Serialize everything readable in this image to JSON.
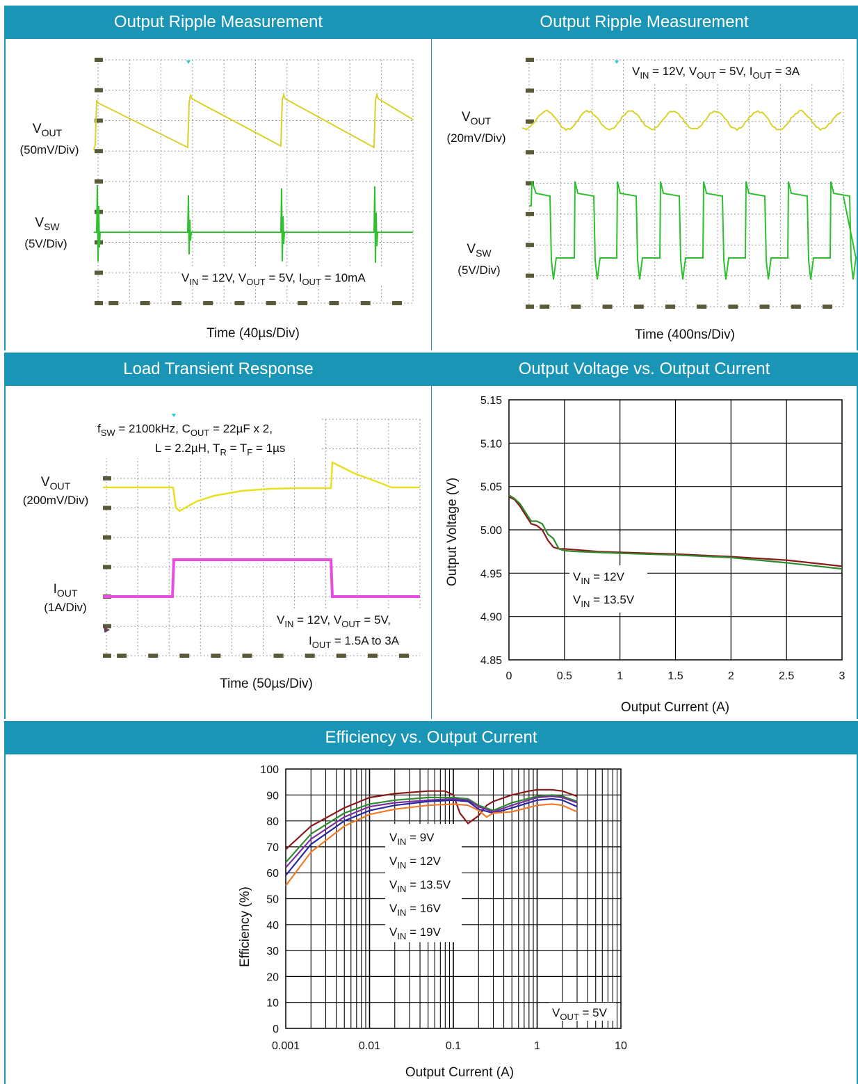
{
  "panels": {
    "p1": {
      "title": "Output Ripple Measurement"
    },
    "p2": {
      "title": "Output Ripple Measurement"
    },
    "p3": {
      "title": "Load Transient Response"
    },
    "p4": {
      "title": "Output Voltage vs. Output Current"
    },
    "p5": {
      "title": "Efficiency vs. Output Current"
    }
  },
  "scope1": {
    "ch1": {
      "label": "V",
      "sub": "OUT",
      "scale": "(50mV/Div)"
    },
    "ch2": {
      "label": "V",
      "sub": "SW",
      "scale": "(5V/Div)"
    },
    "cond": {
      "a": "V",
      "a_sub": "IN",
      "a_val": " = 12V, V",
      "b_sub": "OUT",
      "b_val": " = 5V, I",
      "c_sub": "OUT",
      "c_val": " = 10mA"
    },
    "time": "Time (40µs/Div)"
  },
  "scope2": {
    "ch1": {
      "label": "V",
      "sub": "OUT",
      "scale": "(20mV/Div)"
    },
    "ch2": {
      "label": "V",
      "sub": "SW",
      "scale": "(5V/Div)"
    },
    "cond": {
      "a": "V",
      "a_sub": "IN",
      "a_val": " = 12V, V",
      "b_sub": "OUT",
      "b_val": " = 5V, I",
      "c_sub": "OUT",
      "c_val": " = 3A"
    },
    "time": "Time (400ns/Div)"
  },
  "scope3": {
    "ch1": {
      "label": "V",
      "sub": "OUT",
      "scale": "(200mV/Div)"
    },
    "ch2": {
      "label": "I",
      "sub": "OUT",
      "scale": "(1A/Div)"
    },
    "top1": {
      "a": "f",
      "a_sub": "SW",
      "a_val": " = 2100kHz, C",
      "b_sub": "OUT",
      "b_val": " = 22µF x 2,"
    },
    "top2": {
      "a": "L = 2.2µH, T",
      "a_sub": "R",
      "a_val": " = T",
      "b_sub": "F",
      "b_val": " = 1µs"
    },
    "bot1": {
      "a": "V",
      "a_sub": "IN",
      "a_val": " = 12V, V",
      "b_sub": "OUT",
      "b_val": " = 5V,"
    },
    "bot2": {
      "a": "I",
      "a_sub": "OUT",
      "a_val": " = 1.5A to 3A"
    },
    "time": "Time (50µs/Div)"
  },
  "chart_data": [
    {
      "type": "line",
      "title": "Output Voltage vs. Output Current",
      "xlabel": "Output Current (A)",
      "ylabel": "Output Voltage (V)",
      "xlim": [
        0,
        3
      ],
      "ylim": [
        4.85,
        5.15
      ],
      "xticks": [
        "0",
        "0.5",
        "1",
        "1.5",
        "2",
        "2.5",
        "3"
      ],
      "yticks": [
        "5.15",
        "5.10",
        "5.05",
        "5.00",
        "4.95",
        "4.90",
        "4.85"
      ],
      "grid": true,
      "series": [
        {
          "name": "V",
          "name_sub": "IN",
          "name_val": " = 12V",
          "color": "#8b1a1a",
          "x": [
            0,
            0.05,
            0.1,
            0.15,
            0.2,
            0.25,
            0.3,
            0.35,
            0.4,
            0.45,
            0.5,
            0.6,
            0.8,
            1.0,
            1.5,
            2.0,
            2.5,
            3.0
          ],
          "y": [
            5.038,
            5.035,
            5.027,
            5.017,
            5.007,
            5.005,
            5.0,
            4.988,
            4.98,
            4.978,
            4.978,
            4.977,
            4.975,
            4.974,
            4.972,
            4.969,
            4.965,
            4.958
          ]
        },
        {
          "name": "V",
          "name_sub": "IN",
          "name_val": " = 13.5V",
          "color": "#2e8b2e",
          "x": [
            0,
            0.05,
            0.1,
            0.15,
            0.2,
            0.25,
            0.3,
            0.35,
            0.4,
            0.45,
            0.5,
            0.6,
            0.8,
            1.0,
            1.5,
            2.0,
            2.5,
            3.0
          ],
          "y": [
            5.04,
            5.036,
            5.03,
            5.02,
            5.01,
            5.01,
            5.007,
            4.995,
            4.99,
            4.978,
            4.976,
            4.975,
            4.974,
            4.973,
            4.971,
            4.968,
            4.962,
            4.955
          ]
        }
      ]
    },
    {
      "type": "line",
      "title": "Efficiency vs. Output Current",
      "xlabel": "Output Current (A)",
      "ylabel": "Efficiency (%)",
      "xscale": "log",
      "xlim": [
        0.001,
        10
      ],
      "ylim": [
        0,
        100
      ],
      "xticks": [
        "0.001",
        "0.01",
        "0.1",
        "1",
        "10"
      ],
      "yticks": [
        "100",
        "90",
        "80",
        "70",
        "60",
        "50",
        "40",
        "30",
        "20",
        "10",
        "0"
      ],
      "grid": true,
      "annotation": {
        "a": "V",
        "a_sub": "OUT",
        "a_val": " = 5V"
      },
      "series": [
        {
          "name": "V",
          "name_sub": "IN",
          "name_val": " = 9V",
          "color": "#8b1a1a",
          "x": [
            0.001,
            0.002,
            0.005,
            0.01,
            0.02,
            0.05,
            0.08,
            0.1,
            0.12,
            0.15,
            0.2,
            0.25,
            0.3,
            0.5,
            0.8,
            1,
            1.5,
            2,
            3
          ],
          "y": [
            69,
            78,
            85,
            89,
            90.5,
            91.5,
            91.5,
            90,
            83,
            79,
            82,
            86,
            87.5,
            90,
            91.5,
            92,
            92,
            91.5,
            89.5
          ]
        },
        {
          "name": "V",
          "name_sub": "IN",
          "name_val": " = 12V",
          "color": "#2e8b2e",
          "x": [
            0.001,
            0.002,
            0.005,
            0.01,
            0.02,
            0.05,
            0.1,
            0.15,
            0.2,
            0.3,
            0.5,
            1,
            1.5,
            2,
            3
          ],
          "y": [
            64,
            75,
            83,
            86.5,
            88,
            89,
            89,
            88.5,
            86,
            84,
            87,
            89.5,
            90,
            89.5,
            87.5
          ]
        },
        {
          "name": "V",
          "name_sub": "IN",
          "name_val": " = 13.5V",
          "color": "#7b2f9e",
          "x": [
            0.001,
            0.002,
            0.005,
            0.01,
            0.02,
            0.05,
            0.1,
            0.15,
            0.2,
            0.3,
            0.5,
            1,
            1.5,
            2,
            3
          ],
          "y": [
            62,
            73,
            81.5,
            85.5,
            87,
            88,
            88.5,
            88,
            85.5,
            83.5,
            86,
            89,
            89.5,
            89,
            87
          ]
        },
        {
          "name": "V",
          "name_sub": "IN",
          "name_val": " = 16V",
          "color": "#2a2aa0",
          "x": [
            0.001,
            0.002,
            0.005,
            0.01,
            0.02,
            0.05,
            0.1,
            0.15,
            0.2,
            0.3,
            0.5,
            1,
            1.5,
            2,
            3
          ],
          "y": [
            59,
            71,
            80,
            84,
            86,
            87.5,
            88,
            87.5,
            84.5,
            83,
            85,
            88,
            88.5,
            88,
            85.5
          ]
        },
        {
          "name": "V",
          "name_sub": "IN",
          "name_val": " = 19V",
          "color": "#f07a2a",
          "x": [
            0.001,
            0.002,
            0.005,
            0.01,
            0.02,
            0.05,
            0.1,
            0.15,
            0.2,
            0.25,
            0.3,
            0.5,
            1,
            1.5,
            2,
            3
          ],
          "y": [
            55,
            68,
            78,
            82.5,
            84.5,
            86,
            86.5,
            86,
            84,
            81.5,
            83,
            83.5,
            86,
            86.5,
            86,
            83.5
          ]
        }
      ]
    }
  ]
}
